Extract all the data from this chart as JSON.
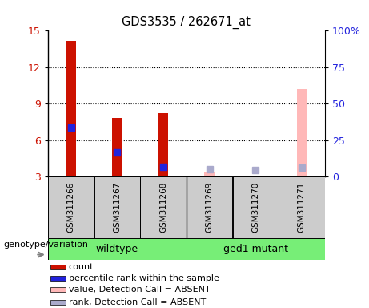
{
  "title": "GDS3535 / 262671_at",
  "samples": [
    "GSM311266",
    "GSM311267",
    "GSM311268",
    "GSM311269",
    "GSM311270",
    "GSM311271"
  ],
  "absent": [
    false,
    false,
    false,
    true,
    true,
    true
  ],
  "count_values": [
    14.2,
    7.8,
    8.2,
    3.4,
    3.1,
    10.2
  ],
  "rank_values": [
    7.0,
    5.0,
    3.8,
    null,
    null,
    null
  ],
  "rank_pct_absent": [
    null,
    null,
    null,
    5.0,
    4.5,
    6.2
  ],
  "rank_pct_present": [
    40,
    26,
    5,
    null,
    null,
    null
  ],
  "ylim_left": [
    3,
    15
  ],
  "ylim_right": [
    0,
    100
  ],
  "yticks_left": [
    3,
    6,
    9,
    12,
    15
  ],
  "yticks_right": [
    0,
    25,
    50,
    75,
    100
  ],
  "yticklabels_left": [
    "3",
    "6",
    "9",
    "12",
    "15"
  ],
  "yticklabels_right": [
    "0",
    "25",
    "50",
    "75",
    "100%"
  ],
  "grid_lines": [
    6,
    9,
    12
  ],
  "color_red": "#cc1100",
  "color_blue": "#2222dd",
  "color_pink": "#ffb8b8",
  "color_lavender": "#aaaacc",
  "color_green": "#77ee77",
  "color_gray": "#cccccc",
  "bar_width": 0.4,
  "marker_size": 6,
  "legend_items": [
    {
      "color": "#cc1100",
      "label": "count"
    },
    {
      "color": "#2222dd",
      "label": "percentile rank within the sample"
    },
    {
      "color": "#ffb8b8",
      "label": "value, Detection Call = ABSENT"
    },
    {
      "color": "#aaaacc",
      "label": "rank, Detection Call = ABSENT"
    }
  ],
  "group_label_text": "genotype/variation",
  "wildtype_label": "wildtype",
  "mutant_label": "ged1 mutant"
}
